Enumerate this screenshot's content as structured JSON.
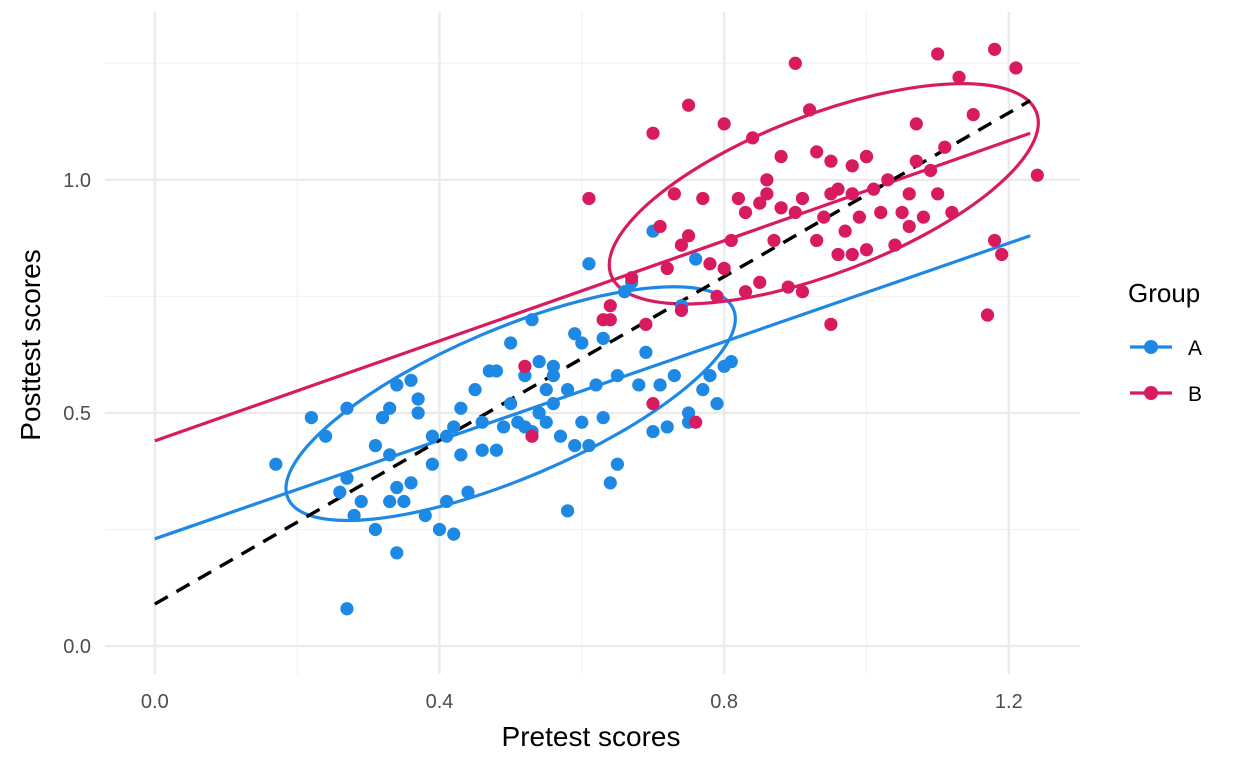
{
  "chart_data": {
    "type": "scatter",
    "title": "",
    "xlabel": "Pretest scores",
    "ylabel": "Posttest scores",
    "xlim": [
      -0.07,
      1.3
    ],
    "ylim": [
      -0.06,
      1.36
    ],
    "x_ticks": [
      0.0,
      0.4,
      0.8,
      1.2
    ],
    "x_tick_labels": [
      "0.0",
      "0.4",
      "0.8",
      "1.2"
    ],
    "y_ticks": [
      0.0,
      0.5,
      1.0
    ],
    "y_tick_labels": [
      "0.0",
      "0.5",
      "1.0"
    ],
    "grid": true,
    "legend": {
      "title": "Group",
      "position": "right",
      "entries": [
        "A",
        "B"
      ]
    },
    "colors": {
      "A": "#1E88E5",
      "B": "#D81B60",
      "overall": "#000000"
    },
    "series": [
      {
        "name": "A",
        "points": [
          [
            0.17,
            0.39
          ],
          [
            0.22,
            0.49
          ],
          [
            0.24,
            0.45
          ],
          [
            0.26,
            0.33
          ],
          [
            0.27,
            0.36
          ],
          [
            0.27,
            0.51
          ],
          [
            0.28,
            0.28
          ],
          [
            0.29,
            0.31
          ],
          [
            0.31,
            0.25
          ],
          [
            0.31,
            0.43
          ],
          [
            0.32,
            0.49
          ],
          [
            0.33,
            0.51
          ],
          [
            0.33,
            0.31
          ],
          [
            0.34,
            0.56
          ],
          [
            0.34,
            0.34
          ],
          [
            0.35,
            0.31
          ],
          [
            0.36,
            0.57
          ],
          [
            0.36,
            0.35
          ],
          [
            0.37,
            0.53
          ],
          [
            0.37,
            0.5
          ],
          [
            0.38,
            0.28
          ],
          [
            0.39,
            0.39
          ],
          [
            0.39,
            0.45
          ],
          [
            0.4,
            0.25
          ],
          [
            0.41,
            0.31
          ],
          [
            0.41,
            0.45
          ],
          [
            0.42,
            0.24
          ],
          [
            0.42,
            0.47
          ],
          [
            0.43,
            0.51
          ],
          [
            0.43,
            0.41
          ],
          [
            0.44,
            0.33
          ],
          [
            0.45,
            0.55
          ],
          [
            0.46,
            0.42
          ],
          [
            0.47,
            0.59
          ],
          [
            0.48,
            0.42
          ],
          [
            0.49,
            0.47
          ],
          [
            0.5,
            0.52
          ],
          [
            0.5,
            0.65
          ],
          [
            0.51,
            0.48
          ],
          [
            0.52,
            0.58
          ],
          [
            0.53,
            0.46
          ],
          [
            0.53,
            0.7
          ],
          [
            0.54,
            0.5
          ],
          [
            0.54,
            0.61
          ],
          [
            0.55,
            0.55
          ],
          [
            0.55,
            0.48
          ],
          [
            0.56,
            0.6
          ],
          [
            0.56,
            0.52
          ],
          [
            0.57,
            0.45
          ],
          [
            0.58,
            0.29
          ],
          [
            0.58,
            0.55
          ],
          [
            0.59,
            0.43
          ],
          [
            0.59,
            0.67
          ],
          [
            0.6,
            0.48
          ],
          [
            0.6,
            0.65
          ],
          [
            0.61,
            0.43
          ],
          [
            0.62,
            0.56
          ],
          [
            0.63,
            0.49
          ],
          [
            0.63,
            0.66
          ],
          [
            0.64,
            0.35
          ],
          [
            0.65,
            0.39
          ],
          [
            0.65,
            0.58
          ],
          [
            0.66,
            0.76
          ],
          [
            0.67,
            0.78
          ],
          [
            0.68,
            0.56
          ],
          [
            0.69,
            0.63
          ],
          [
            0.7,
            0.46
          ],
          [
            0.7,
            0.89
          ],
          [
            0.71,
            0.56
          ],
          [
            0.72,
            0.47
          ],
          [
            0.73,
            0.58
          ],
          [
            0.74,
            0.73
          ],
          [
            0.75,
            0.48
          ],
          [
            0.75,
            0.5
          ],
          [
            0.76,
            0.83
          ],
          [
            0.77,
            0.55
          ],
          [
            0.78,
            0.58
          ],
          [
            0.79,
            0.52
          ],
          [
            0.8,
            0.6
          ],
          [
            0.81,
            0.61
          ],
          [
            0.61,
            0.82
          ],
          [
            0.27,
            0.08
          ],
          [
            0.34,
            0.2
          ],
          [
            0.48,
            0.59
          ],
          [
            0.52,
            0.47
          ],
          [
            0.56,
            0.58
          ],
          [
            0.46,
            0.48
          ],
          [
            0.33,
            0.41
          ]
        ]
      },
      {
        "name": "B",
        "points": [
          [
            0.52,
            0.6
          ],
          [
            0.53,
            0.45
          ],
          [
            0.61,
            0.96
          ],
          [
            0.63,
            0.7
          ],
          [
            0.64,
            0.73
          ],
          [
            0.64,
            0.7
          ],
          [
            0.67,
            0.79
          ],
          [
            0.7,
            0.52
          ],
          [
            0.7,
            1.1
          ],
          [
            0.71,
            0.9
          ],
          [
            0.72,
            0.81
          ],
          [
            0.73,
            0.97
          ],
          [
            0.74,
            0.72
          ],
          [
            0.74,
            0.86
          ],
          [
            0.75,
            1.16
          ],
          [
            0.75,
            0.88
          ],
          [
            0.76,
            0.48
          ],
          [
            0.77,
            0.96
          ],
          [
            0.78,
            0.82
          ],
          [
            0.79,
            0.75
          ],
          [
            0.8,
            0.81
          ],
          [
            0.8,
            1.12
          ],
          [
            0.81,
            0.87
          ],
          [
            0.82,
            0.96
          ],
          [
            0.83,
            0.93
          ],
          [
            0.84,
            1.09
          ],
          [
            0.85,
            0.95
          ],
          [
            0.85,
            0.78
          ],
          [
            0.86,
            1.0
          ],
          [
            0.86,
            0.97
          ],
          [
            0.87,
            0.87
          ],
          [
            0.88,
            0.94
          ],
          [
            0.88,
            1.05
          ],
          [
            0.89,
            0.77
          ],
          [
            0.9,
            0.93
          ],
          [
            0.9,
            1.25
          ],
          [
            0.91,
            0.96
          ],
          [
            0.92,
            1.15
          ],
          [
            0.93,
            1.06
          ],
          [
            0.93,
            0.87
          ],
          [
            0.94,
            0.92
          ],
          [
            0.95,
            1.04
          ],
          [
            0.96,
            0.98
          ],
          [
            0.96,
            0.84
          ],
          [
            0.97,
            0.89
          ],
          [
            0.98,
            0.97
          ],
          [
            0.98,
            1.03
          ],
          [
            0.99,
            0.92
          ],
          [
            1.0,
            1.05
          ],
          [
            1.0,
            0.85
          ],
          [
            1.01,
            0.98
          ],
          [
            1.02,
            0.93
          ],
          [
            1.03,
            1.0
          ],
          [
            1.04,
            0.86
          ],
          [
            1.05,
            0.93
          ],
          [
            1.06,
            0.97
          ],
          [
            1.07,
            1.04
          ],
          [
            1.07,
            1.12
          ],
          [
            1.08,
            0.92
          ],
          [
            1.09,
            1.02
          ],
          [
            1.1,
            0.97
          ],
          [
            1.1,
            1.27
          ],
          [
            1.11,
            1.07
          ],
          [
            1.12,
            0.93
          ],
          [
            1.13,
            1.22
          ],
          [
            1.15,
            1.14
          ],
          [
            1.17,
            0.71
          ],
          [
            1.18,
            1.28
          ],
          [
            1.18,
            0.87
          ],
          [
            1.19,
            0.84
          ],
          [
            1.21,
            1.24
          ],
          [
            1.24,
            1.01
          ],
          [
            0.69,
            0.69
          ],
          [
            0.95,
            0.69
          ],
          [
            0.83,
            0.76
          ],
          [
            0.98,
            0.84
          ],
          [
            1.0,
            1.05
          ],
          [
            0.91,
            0.76
          ],
          [
            0.95,
            0.97
          ],
          [
            1.06,
            0.9
          ]
        ]
      }
    ],
    "regression_lines": [
      {
        "group": "A",
        "x": [
          0.0,
          1.23
        ],
        "y": [
          0.23,
          0.88
        ]
      },
      {
        "group": "B",
        "x": [
          0.0,
          1.23
        ],
        "y": [
          0.44,
          1.1
        ]
      },
      {
        "group": "overall",
        "style": "dashed",
        "x": [
          0.0,
          1.23
        ],
        "y": [
          0.09,
          1.17
        ]
      }
    ],
    "ellipses": [
      {
        "group": "A",
        "center": [
          0.5,
          0.52
        ],
        "rx_units": 0.34,
        "ry_units": 0.16,
        "angle_deg": 23
      },
      {
        "group": "B",
        "center": [
          0.94,
          0.97
        ],
        "rx_units": 0.32,
        "ry_units": 0.17,
        "angle_deg": 21
      }
    ]
  }
}
